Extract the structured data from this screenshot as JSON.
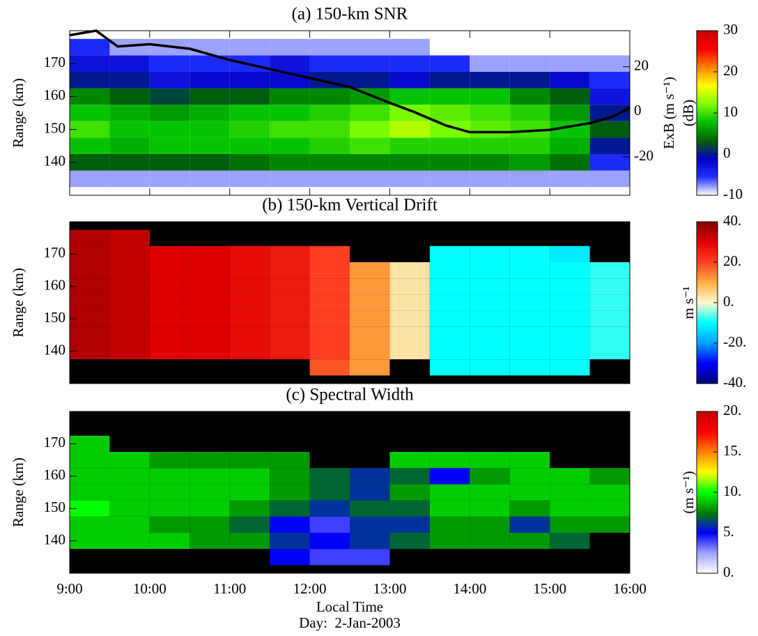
{
  "chart_data": [
    {
      "type": "heatmap",
      "title": "(a) 150-km SNR",
      "ylabel": "Range (km)",
      "xlim": [
        9,
        16
      ],
      "xticks": [
        9,
        10,
        11,
        12,
        13,
        14,
        15,
        16
      ],
      "ylim": [
        130,
        180
      ],
      "yticks": [
        140,
        150,
        160,
        170
      ],
      "x_edges": [
        9,
        9.5,
        10,
        10.5,
        11,
        11.5,
        12,
        12.5,
        13,
        13.5,
        14,
        14.5,
        15,
        15.5,
        16
      ],
      "y_edges": [
        132.5,
        137.5,
        142.5,
        147.5,
        152.5,
        157.5,
        162.5,
        167.5,
        172.5,
        177.5
      ],
      "z": [
        [
          -8,
          -8,
          -8,
          -8,
          -8,
          -8,
          -8,
          -8,
          -8,
          -8,
          -8,
          -8,
          -8,
          -8
        ],
        [
          3,
          3,
          3,
          3,
          4,
          5,
          5,
          5,
          5,
          5,
          5,
          6,
          4,
          -5
        ],
        [
          8,
          7,
          8,
          8,
          8,
          8,
          9,
          10,
          9,
          9,
          9,
          9,
          7,
          0
        ],
        [
          10,
          8,
          8,
          8,
          9,
          10,
          10,
          12,
          14,
          12,
          11,
          10,
          8,
          3
        ],
        [
          8,
          7,
          6,
          7,
          8,
          8,
          9,
          10,
          12,
          11,
          10,
          9,
          6,
          0
        ],
        [
          5,
          3,
          2,
          3,
          3,
          5,
          5,
          6,
          8,
          8,
          8,
          5,
          3,
          -3
        ],
        [
          0,
          0,
          -3,
          -2,
          -2,
          -2,
          0,
          0,
          -2,
          0,
          0,
          0,
          -2,
          -5
        ],
        [
          -3,
          -3,
          -5,
          -5,
          -5,
          -3,
          -5,
          -5,
          -5,
          -5,
          -8,
          -8,
          -8,
          -8
        ],
        [
          -5,
          -8,
          -8,
          -8,
          -8,
          -8,
          -8,
          -8,
          -8,
          null,
          null,
          null,
          null,
          null
        ]
      ],
      "clim": [
        -10,
        30
      ],
      "colorbar_ticks": [
        -10,
        0,
        10,
        20,
        30
      ],
      "colorbar_label": "(dB)",
      "colormap": [
        "#ffffff",
        "#2030ff",
        "#0000c0",
        "#006400",
        "#00c000",
        "#80ff00",
        "#ffff00",
        "#ff8000",
        "#ff0000",
        "#c00000"
      ],
      "missing_color": "#ffffff",
      "y2label": "ExB (m s⁻¹)",
      "y2lim": [
        -37,
        36
      ],
      "y2ticks": [
        -20,
        0,
        20
      ],
      "series": [
        {
          "axis": "y2",
          "color": "#000000",
          "x": [
            9.0,
            9.33,
            9.6,
            10.0,
            10.5,
            11.0,
            11.5,
            12.0,
            12.5,
            13.0,
            13.3,
            13.7,
            14.0,
            14.5,
            15.0,
            15.5,
            15.8,
            16.0
          ],
          "values": [
            34,
            36,
            29,
            30,
            28,
            23,
            19,
            15,
            11,
            4,
            0,
            -6,
            -9,
            -9,
            -8,
            -5,
            -2,
            2
          ]
        }
      ]
    },
    {
      "type": "heatmap",
      "title": "(b) 150-km Vertical Drift",
      "ylabel": "Range (km)",
      "xlim": [
        9,
        16
      ],
      "xticks": [
        9,
        10,
        11,
        12,
        13,
        14,
        15,
        16
      ],
      "ylim": [
        130,
        180
      ],
      "yticks": [
        140,
        150,
        160,
        170
      ],
      "x_edges": [
        9,
        9.5,
        10,
        10.5,
        11,
        11.5,
        12,
        12.5,
        13,
        13.5,
        14,
        14.5,
        15,
        15.5,
        16
      ],
      "y_edges": [
        132.5,
        137.5,
        142.5,
        147.5,
        152.5,
        157.5,
        162.5,
        167.5,
        172.5,
        177.5
      ],
      "z": [
        [
          null,
          null,
          null,
          null,
          null,
          null,
          18,
          12,
          null,
          -10,
          -10,
          -10,
          -10,
          null
        ],
        [
          35,
          33,
          30,
          30,
          28,
          26,
          20,
          12,
          3,
          -10,
          -10,
          -10,
          -10,
          -8
        ],
        [
          35,
          33,
          30,
          30,
          28,
          26,
          20,
          12,
          3,
          -10,
          -10,
          -10,
          -10,
          -8
        ],
        [
          35,
          33,
          30,
          30,
          28,
          26,
          20,
          12,
          3,
          -10,
          -10,
          -10,
          -10,
          -8
        ],
        [
          35,
          33,
          30,
          30,
          28,
          26,
          20,
          12,
          3,
          -10,
          -10,
          -10,
          -10,
          -8
        ],
        [
          35,
          33,
          30,
          30,
          28,
          26,
          20,
          12,
          3,
          -10,
          -10,
          -10,
          -10,
          -8
        ],
        [
          35,
          33,
          30,
          30,
          28,
          26,
          20,
          12,
          3,
          -10,
          -10,
          -10,
          -10,
          -8
        ],
        [
          35,
          33,
          30,
          30,
          28,
          26,
          20,
          null,
          null,
          -10,
          -10,
          -10,
          -12,
          null
        ],
        [
          35,
          33,
          null,
          null,
          null,
          null,
          null,
          null,
          null,
          null,
          null,
          null,
          null,
          null
        ]
      ],
      "clim": [
        -40,
        40
      ],
      "colorbar_ticks": [
        {
          "value": -40,
          "label": "-40."
        },
        {
          "value": -20,
          "label": "-20."
        },
        {
          "value": 0,
          "label": "0."
        },
        {
          "value": 20,
          "label": "20."
        },
        {
          "value": 40,
          "label": "40."
        }
      ],
      "colorbar_label": "m s⁻¹",
      "colormap": [
        "#00007f",
        "#0000ff",
        "#00a0ff",
        "#00ffff",
        "#fff8d0",
        "#ffb040",
        "#ff4020",
        "#e00000",
        "#800000"
      ],
      "missing_color": "#000000"
    },
    {
      "type": "heatmap",
      "title": "(c) Spectral Width",
      "ylabel": "Range (km)",
      "xlabel": "Local Time",
      "footnote": "Day:  2-Jan-2003",
      "xlim": [
        9,
        16
      ],
      "xticks": [
        {
          "value": 9,
          "label": "9:00"
        },
        {
          "value": 10,
          "label": "10:00"
        },
        {
          "value": 11,
          "label": "11:00"
        },
        {
          "value": 12,
          "label": "12:00"
        },
        {
          "value": 13,
          "label": "13:00"
        },
        {
          "value": 14,
          "label": "14:00"
        },
        {
          "value": 15,
          "label": "15:00"
        },
        {
          "value": 16,
          "label": "16:00"
        }
      ],
      "ylim": [
        130,
        180
      ],
      "yticks": [
        140,
        150,
        160,
        170
      ],
      "x_edges": [
        9,
        9.5,
        10,
        10.5,
        11,
        11.5,
        12,
        12.5,
        13,
        13.5,
        14,
        14.5,
        15,
        15.5,
        16
      ],
      "y_edges": [
        132.5,
        137.5,
        142.5,
        147.5,
        152.5,
        157.5,
        162.5,
        167.5,
        172.5,
        177.5
      ],
      "z": [
        [
          null,
          null,
          null,
          null,
          null,
          5,
          4,
          4,
          null,
          null,
          null,
          null,
          null,
          null
        ],
        [
          9,
          9,
          9,
          8,
          8,
          6,
          5,
          6,
          7,
          8,
          8,
          8,
          7,
          null
        ],
        [
          9,
          9,
          8,
          8,
          7,
          5,
          4,
          6,
          6,
          8,
          8,
          6,
          8,
          8
        ],
        [
          10,
          9,
          9,
          9,
          8,
          7,
          6,
          7,
          7,
          9,
          9,
          8,
          9,
          9
        ],
        [
          9,
          9,
          9,
          9,
          9,
          8,
          7,
          6,
          8,
          9,
          9,
          9,
          9,
          9
        ],
        [
          9,
          9,
          9,
          9,
          9,
          8,
          7,
          6,
          7,
          5,
          8,
          9,
          9,
          8
        ],
        [
          9,
          9,
          8,
          8,
          8,
          8,
          null,
          null,
          9,
          9,
          9,
          9,
          null,
          null
        ],
        [
          9,
          null,
          null,
          null,
          null,
          null,
          null,
          null,
          null,
          null,
          null,
          null,
          null,
          null
        ],
        [
          null,
          null,
          null,
          null,
          null,
          null,
          null,
          null,
          null,
          null,
          null,
          null,
          null,
          null
        ]
      ],
      "clim": [
        0,
        20
      ],
      "colorbar_ticks": [
        {
          "value": 0,
          "label": "0."
        },
        {
          "value": 5,
          "label": "5."
        },
        {
          "value": 10,
          "label": "10."
        },
        {
          "value": 15,
          "label": "15."
        },
        {
          "value": 20,
          "label": "20."
        }
      ],
      "colorbar_label": "(m s⁻¹)",
      "colormap": [
        "#ffffff",
        "#a0a0ff",
        "#0000ff",
        "#008000",
        "#00ff00",
        "#ffff00",
        "#ff8000",
        "#ff0000",
        "#c00000"
      ],
      "missing_color": "#000000"
    }
  ]
}
